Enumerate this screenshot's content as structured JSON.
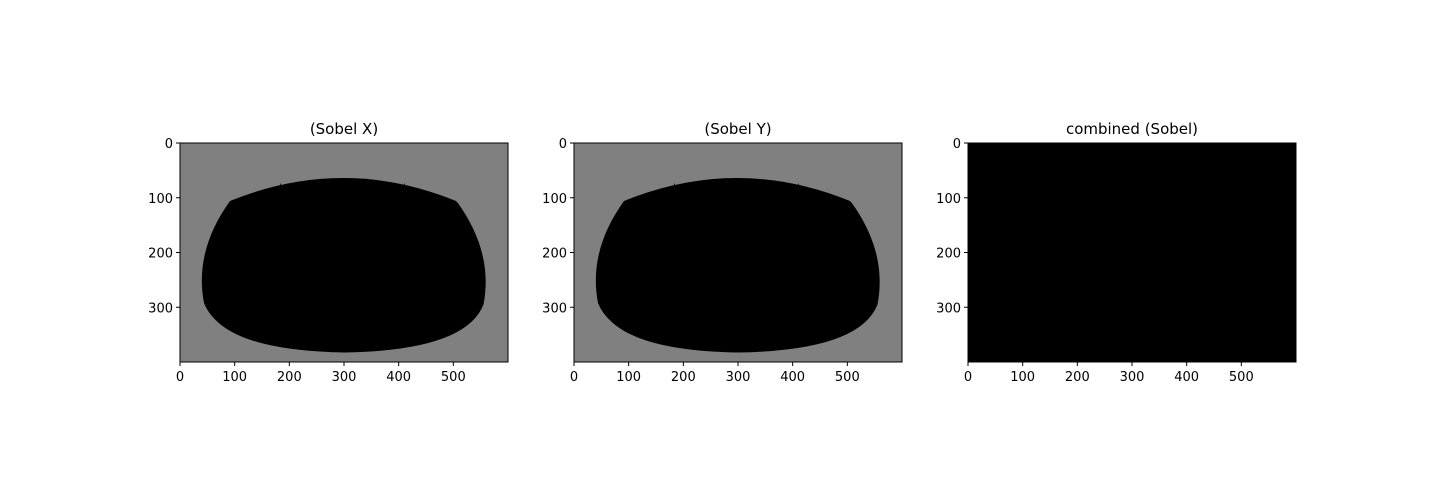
{
  "chart_data": [
    {
      "type": "image",
      "title": "(Sobel X)",
      "xlim": [
        0,
        600
      ],
      "ylim": [
        400,
        0
      ],
      "xticks": [
        0,
        100,
        200,
        300,
        400,
        500
      ],
      "yticks": [
        0,
        100,
        200,
        300
      ],
      "background": "#808080"
    },
    {
      "type": "image",
      "title": "(Sobel Y)",
      "xlim": [
        0,
        600
      ],
      "ylim": [
        400,
        0
      ],
      "xticks": [
        0,
        100,
        200,
        300,
        400,
        500
      ],
      "yticks": [
        0,
        100,
        200,
        300
      ],
      "background": "#808080"
    },
    {
      "type": "image",
      "title": "combined (Sobel)",
      "xlim": [
        0,
        600
      ],
      "ylim": [
        400,
        0
      ],
      "xticks": [
        0,
        100,
        200,
        300,
        400,
        500
      ],
      "yticks": [
        0,
        100,
        200,
        300
      ],
      "background": "#000000"
    }
  ]
}
